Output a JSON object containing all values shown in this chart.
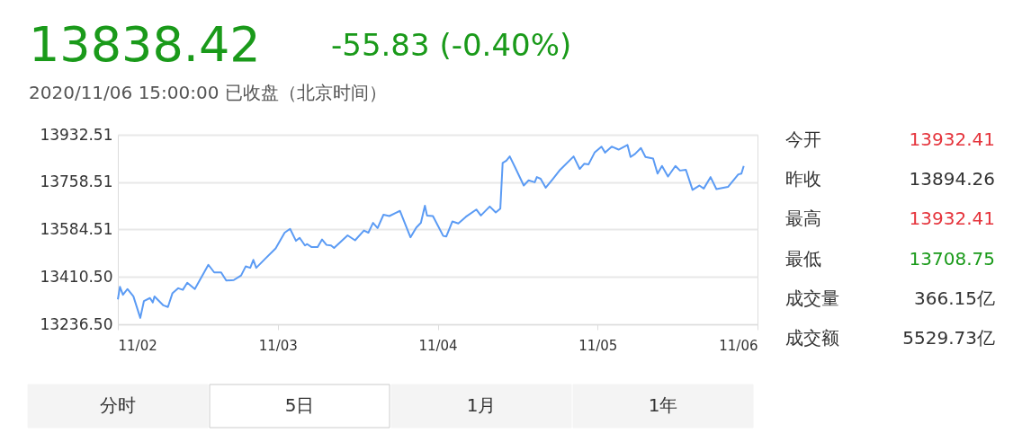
{
  "chart_data": [
    {
      "type": "line",
      "title": "13838.42",
      "subtitle": "2020/11/06 15:00:00 已收盘（北京时间）",
      "annotations": [
        "-55.83 (-0.40%)",
        "分时",
        "5日",
        "1月",
        "1年"
      ],
      "x": [
        "2020-11-02T00:00",
        "2020-11-02T00:19",
        "2020-11-02T00:46",
        "2020-11-02T01:26",
        "2020-11-02T02:20",
        "2020-11-02T03:22",
        "2020-11-02T03:55",
        "2020-11-02T04:49",
        "2020-11-02T05:15",
        "2020-11-02T05:30",
        "2020-11-02T06:50",
        "2020-11-02T07:31",
        "2020-11-02T08:11",
        "2020-11-02T09:04",
        "2020-11-02T09:45",
        "2020-11-02T10:25",
        "2020-11-02T11:33",
        "2020-11-02T13:35",
        "2020-11-02T14:28",
        "2020-11-02T15:30",
        "2020-11-02T16:16",
        "2020-11-02T17:24",
        "2020-11-02T18:30",
        "2020-11-02T19:11",
        "2020-11-02T19:52",
        "2020-11-02T20:20",
        "2020-11-02T20:46",
        "2020-11-02T22:06",
        "2020-11-02T23:41",
        "2020-11-03T01:02",
        "2020-11-03T01:51",
        "2020-11-03T02:44",
        "2020-11-03T03:17",
        "2020-11-03T04:05",
        "2020-11-03T04:25",
        "2020-11-03T05:05",
        "2020-11-03T05:59",
        "2020-11-03T06:39",
        "2020-11-03T07:19",
        "2020-11-03T08:00",
        "2020-11-03T08:27",
        "2020-11-03T10:29",
        "2020-11-03T11:36",
        "2020-11-03T12:56",
        "2020-11-03T13:36",
        "2020-11-03T14:18",
        "2020-11-03T14:59",
        "2020-11-03T15:52",
        "2020-11-03T16:45",
        "2020-11-03T17:40",
        "2020-11-03T18:20",
        "2020-11-03T19:55",
        "2020-11-03T20:48",
        "2020-11-03T21:29",
        "2020-11-03T22:05",
        "2020-11-03T22:24",
        "2020-11-03T23:17",
        "2020-11-04T00:50",
        "2020-11-04T01:18",
        "2020-11-04T02:12",
        "2020-11-04T03:06",
        "2020-11-04T04:13",
        "2020-11-04T05:48",
        "2020-11-04T06:29",
        "2020-11-04T07:49",
        "2020-11-04T08:43",
        "2020-11-04T09:24",
        "2020-11-04T09:45",
        "2020-11-04T10:18",
        "2020-11-04T10:49",
        "2020-11-04T11:38",
        "2020-11-04T12:55",
        "2020-11-04T13:39",
        "2020-11-04T14:34",
        "2020-11-04T14:53",
        "2020-11-04T15:27",
        "2020-11-04T16:13",
        "2020-11-04T17:15",
        "2020-11-04T18:23",
        "2020-11-04T20:24",
        "2020-11-04T21:19",
        "2020-11-04T21:59",
        "2020-11-04T22:39",
        "2020-11-04T23:33",
        "2020-11-05T00:35",
        "2020-11-05T01:08",
        "2020-11-05T02:07",
        "2020-11-05T03:09",
        "2020-11-05T04:29",
        "2020-11-05T04:57",
        "2020-11-05T05:37",
        "2020-11-05T06:30",
        "2020-11-05T07:11",
        "2020-11-05T08:20",
        "2020-11-05T09:00",
        "2020-11-05T09:40",
        "2020-11-05T10:34",
        "2020-11-05T11:41",
        "2020-11-05T12:22",
        "2020-11-05T13:15",
        "2020-11-05T14:15",
        "2020-11-05T15:16",
        "2020-11-05T15:56",
        "2020-11-05T16:57",
        "2020-11-05T17:50",
        "2020-11-05T19:34",
        "2020-11-05T21:07",
        "2020-11-05T21:35",
        "2020-11-05T21:56"
      ],
      "series": [
        {
          "color": "#5b9bf4",
          "values": [
            13328,
            13374,
            13345,
            13366,
            13339,
            13260,
            13322,
            13333,
            13317,
            13339,
            13306,
            13300,
            13350,
            13369,
            13363,
            13389,
            13366,
            13455,
            13427,
            13427,
            13397,
            13399,
            13416,
            13449,
            13444,
            13473,
            13444,
            13477,
            13515,
            13573,
            13587,
            13543,
            13554,
            13526,
            13531,
            13520,
            13520,
            13548,
            13528,
            13526,
            13517,
            13563,
            13545,
            13581,
            13573,
            13609,
            13590,
            13639,
            13634,
            13645,
            13653,
            13556,
            13592,
            13609,
            13672,
            13636,
            13634,
            13561,
            13559,
            13614,
            13607,
            13631,
            13658,
            13636,
            13669,
            13647,
            13661,
            13829,
            13837,
            13853,
            13812,
            13746,
            13765,
            13758,
            13777,
            13771,
            13738,
            13769,
            13804,
            13853,
            13807,
            13826,
            13824,
            13867,
            13889,
            13867,
            13889,
            13878,
            13895,
            13851,
            13862,
            13884,
            13851,
            13845,
            13790,
            13818,
            13779,
            13818,
            13801,
            13804,
            13730,
            13746,
            13735,
            13777,
            13733,
            13741,
            13787,
            13790,
            13818
          ]
        }
      ],
      "xlim": [
        "2020-11-02",
        "2020-11-06"
      ],
      "xticks": [
        {
          "value": "2020-11-02",
          "label": "11/02"
        },
        {
          "value": "2020-11-03",
          "label": "11/03"
        },
        {
          "value": "2020-11-04",
          "label": "11/04"
        },
        {
          "value": "2020-11-05",
          "label": "11/05"
        },
        {
          "value": "2020-11-06",
          "label": "11/06"
        }
      ],
      "ylim": [
        13236.5,
        13932.51
      ],
      "yticks": [
        {
          "value": 13236.5,
          "label": "13236.50"
        },
        {
          "value": 13410.5,
          "label": "13410.50"
        },
        {
          "value": 13584.51,
          "label": "13584.51"
        },
        {
          "value": 13758.51,
          "label": "13758.51"
        },
        {
          "value": 13932.51,
          "label": "13932.51"
        }
      ],
      "grid": "y"
    },
    {
      "type": "other",
      "categories": [
        "今开",
        "昨收",
        "最高",
        "最低",
        "成交量",
        "成交额"
      ],
      "value_labels": [
        "13932.41",
        "13894.26",
        "13932.41",
        "13708.75",
        "366.15亿",
        "5529.73亿"
      ],
      "colors": [
        "#e5343c",
        "#333333",
        "#e5343c",
        "#1a9a1a",
        "#333333",
        "#333333"
      ]
    }
  ]
}
